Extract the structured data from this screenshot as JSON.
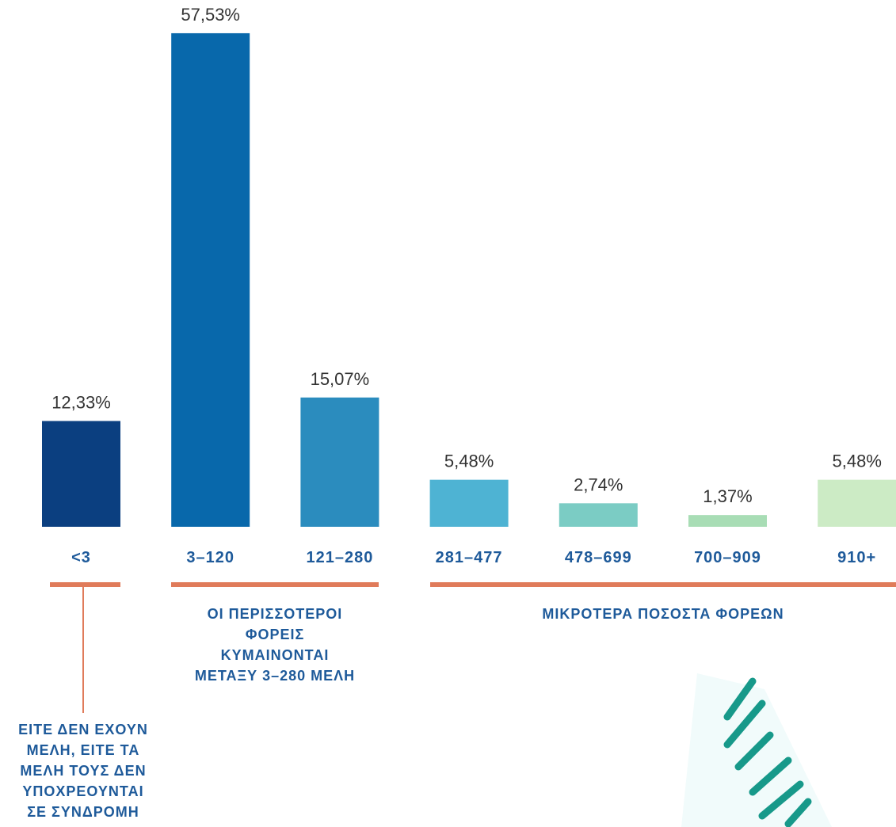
{
  "chart_data": {
    "type": "bar",
    "categories": [
      "<3",
      "3–120",
      "121–280",
      "281–477",
      "478–699",
      "700–909",
      "910+"
    ],
    "values": [
      12.33,
      57.53,
      15.07,
      5.48,
      2.74,
      1.37,
      5.48
    ],
    "value_labels": [
      "12,33%",
      "57,53%",
      "15,07%",
      "5,48%",
      "2,74%",
      "1,37%",
      "5,48%"
    ],
    "colors": [
      "#0b3f80",
      "#0868ab",
      "#2b8cbe",
      "#4eb3d3",
      "#7bccc4",
      "#a8ddb5",
      "#ccebc5"
    ],
    "annotations": [
      {
        "lines": [
          "ΕΙΤΕ ΔΕΝ ΕΧΟΥΝ",
          "ΜΕΛΗ, ΕΙΤΕ ΤΑ",
          "ΜΕΛΗ ΤΟΥΣ ΔΕΝ",
          "ΥΠΟΧΡΕΟΥΝΤΑΙ",
          "ΣΕ ΣΥΝΔΡΟΜΗ"
        ]
      },
      {
        "lines": [
          "ΟΙ ΠΕΡΙΣΣΟΤΕΡΟΙ",
          "ΦΟΡΕΙΣ",
          "ΚΥΜΑΙΝΟΝΤΑΙ",
          "ΜΕΤΑΞΥ 3–280 ΜΕΛΗ"
        ]
      },
      {
        "lines": [
          "ΜΙΚΡΟΤΕΡΑ ΠΟΣΟΣΤΑ ΦΟΡΕΩΝ"
        ]
      }
    ]
  }
}
